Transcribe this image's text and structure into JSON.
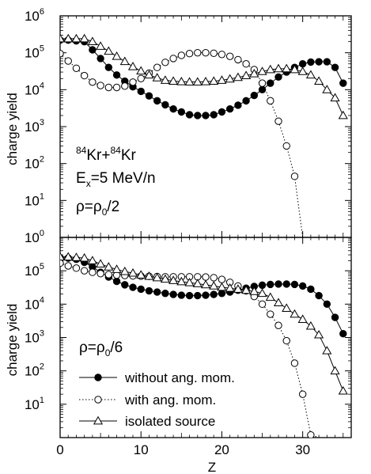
{
  "chart_data": [
    {
      "type": "line",
      "panel": "top",
      "ylabel": "charge yield",
      "xlim": [
        0,
        36
      ],
      "ylim": [
        1,
        1000000
      ],
      "yscale": "log",
      "yticks": [
        1,
        10,
        100,
        1000,
        10000,
        100000,
        1000000
      ],
      "ytick_base": "10",
      "ytick_exponents": [
        "0",
        "1",
        "2",
        "3",
        "4",
        "5",
        "6"
      ],
      "annotation": {
        "mass_a": "84",
        "elem_a": "Kr+",
        "mass_b": "84",
        "elem_b": "Kr",
        "ex_main": "E",
        "ex_sub": "x",
        "ex_rest": "=5 MeV/n",
        "rho_main": "ρ=ρ",
        "rho_sub": "0",
        "rho_rest": "/2"
      },
      "series": [
        {
          "style": "filled-circle-solid",
          "x": [
            0,
            1,
            2,
            3,
            4,
            5,
            6,
            7,
            8,
            9,
            10,
            11,
            12,
            13,
            14,
            15,
            16,
            17,
            18,
            19,
            20,
            21,
            22,
            23,
            24,
            25,
            26,
            27,
            28,
            29,
            30,
            31,
            32,
            33,
            34,
            35
          ],
          "y": [
            220000,
            220000,
            210000,
            200000,
            120000,
            70000,
            40000,
            25000,
            17000,
            12000,
            9000,
            6800,
            5000,
            3900,
            3000,
            2500,
            2100,
            2000,
            2000,
            2100,
            2500,
            3000,
            3800,
            5000,
            7000,
            10000,
            15000,
            22000,
            30000,
            40000,
            50000,
            56000,
            57000,
            57000,
            40000,
            15000
          ]
        },
        {
          "style": "open-circle-dotted",
          "x": [
            0,
            1,
            2,
            3,
            4,
            5,
            6,
            7,
            8,
            9,
            10,
            11,
            12,
            13,
            14,
            15,
            16,
            17,
            18,
            19,
            20,
            21,
            22,
            23,
            24,
            25,
            26,
            27,
            28,
            29,
            30
          ],
          "y": [
            95000,
            60000,
            38000,
            24000,
            16000,
            13000,
            11500,
            11500,
            12500,
            16000,
            20000,
            28000,
            40000,
            55000,
            70000,
            85000,
            95000,
            100000,
            100000,
            97000,
            90000,
            80000,
            65000,
            50000,
            35000,
            15000,
            5000,
            1400,
            300,
            45,
            1
          ]
        },
        {
          "style": "open-triangle-solid",
          "x": [
            0,
            1,
            2,
            3,
            4,
            5,
            6,
            7,
            8,
            9,
            10,
            11,
            12,
            13,
            14,
            15,
            16,
            17,
            18,
            19,
            20,
            21,
            22,
            23,
            24,
            25,
            26,
            27,
            28,
            29,
            30,
            31,
            32,
            33,
            34,
            35
          ],
          "y": [
            240000,
            240000,
            240000,
            240000,
            200000,
            150000,
            110000,
            80000,
            58000,
            42000,
            32000,
            25000,
            21000,
            18000,
            17000,
            16500,
            16200,
            16200,
            16500,
            17000,
            18000,
            19500,
            21500,
            24000,
            27000,
            31000,
            35000,
            37000,
            37000,
            35000,
            31000,
            25000,
            17000,
            10000,
            6000,
            2000
          ]
        }
      ]
    },
    {
      "type": "line",
      "panel": "bottom",
      "xlabel": "Z",
      "ylabel": "charge yield",
      "xlim": [
        0,
        36
      ],
      "ylim": [
        1,
        1000000
      ],
      "yscale": "log",
      "xticks": [
        0,
        10,
        20,
        30
      ],
      "xtick_labels": [
        "0",
        "10",
        "20",
        "30"
      ],
      "yticks": [
        1,
        10,
        100,
        1000,
        10000,
        100000,
        1000000
      ],
      "ytick_base": "10",
      "ytick_exponents": [
        "1",
        "2",
        "3",
        "4",
        "5"
      ],
      "annotation": {
        "rho_main": "ρ=ρ",
        "rho_sub": "0",
        "rho_rest": "/6"
      },
      "legend_position": "bottom-left",
      "legend": [
        {
          "style": "filled-circle-solid",
          "label": "without ang. mom."
        },
        {
          "style": "open-circle-dotted",
          "label": "with ang. mom."
        },
        {
          "style": "open-triangle-solid",
          "label": "isolated source"
        }
      ],
      "series": [
        {
          "style": "filled-circle-solid",
          "x": [
            0,
            1,
            2,
            3,
            4,
            5,
            6,
            7,
            8,
            9,
            10,
            11,
            12,
            13,
            14,
            15,
            16,
            17,
            18,
            19,
            20,
            21,
            22,
            23,
            24,
            25,
            26,
            27,
            28,
            29,
            30,
            31,
            32,
            33,
            34,
            35
          ],
          "y": [
            240000,
            240000,
            220000,
            180000,
            130000,
            90000,
            65000,
            48000,
            38000,
            32000,
            28000,
            25000,
            23000,
            21000,
            19500,
            18500,
            18000,
            18000,
            18500,
            19500,
            21000,
            23000,
            26000,
            30000,
            34000,
            37000,
            39000,
            40000,
            40000,
            39000,
            35000,
            28000,
            18000,
            10000,
            4000,
            1300
          ]
        },
        {
          "style": "open-circle-dotted",
          "x": [
            0,
            1,
            2,
            3,
            4,
            5,
            6,
            7,
            8,
            9,
            10,
            11,
            12,
            13,
            14,
            15,
            16,
            17,
            18,
            19,
            20,
            21,
            22,
            23,
            24,
            25,
            26,
            27,
            28,
            29,
            30,
            31,
            32
          ],
          "y": [
            170000,
            140000,
            120000,
            100000,
            90000,
            82000,
            77000,
            74000,
            72000,
            70000,
            69000,
            68000,
            67000,
            66000,
            66000,
            66000,
            66000,
            66000,
            65000,
            62000,
            55000,
            45000,
            35000,
            25000,
            17000,
            10000,
            5000,
            2300,
            800,
            170,
            20,
            1.2,
            1
          ]
        },
        {
          "style": "open-triangle-solid",
          "x": [
            0,
            1,
            2,
            3,
            4,
            5,
            6,
            7,
            8,
            9,
            10,
            11,
            12,
            13,
            14,
            15,
            16,
            17,
            18,
            19,
            20,
            21,
            22,
            23,
            24,
            25,
            26,
            27,
            28,
            29,
            30,
            31,
            32,
            33,
            34,
            35
          ],
          "y": [
            260000,
            260000,
            250000,
            240000,
            200000,
            160000,
            130000,
            110000,
            95000,
            85000,
            75000,
            68000,
            62000,
            56000,
            51000,
            47000,
            44000,
            41000,
            38000,
            35000,
            32000,
            30000,
            28000,
            26000,
            24000,
            21000,
            16000,
            11000,
            7500,
            5000,
            3500,
            2200,
            1200,
            400,
            100,
            25
          ]
        }
      ]
    }
  ]
}
